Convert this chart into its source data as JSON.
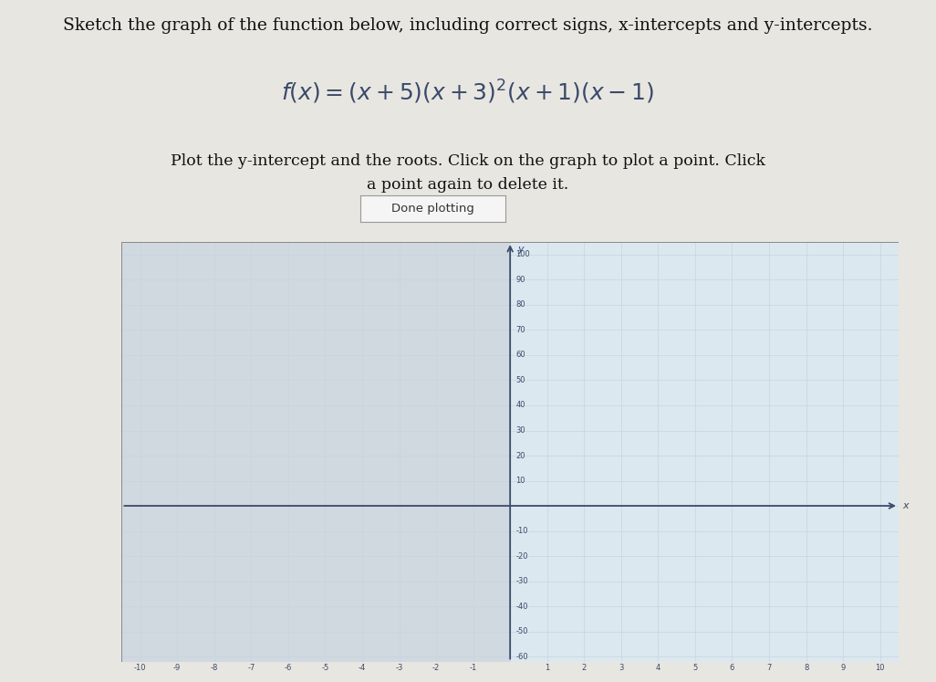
{
  "title_line1": "Sketch the graph of the function below, including correct signs, x-intercepts and y-intercepts.",
  "formula_latex": "f(x) = (x+5)(x+3)^2(x+1)(x-1)",
  "instruction_line1": "Plot the y-intercept and the roots. Click on the graph to plot a point. Click",
  "instruction_line2": "a point again to delete it.",
  "button_text": "Done plotting",
  "xlim": [
    -10,
    10
  ],
  "ylim": [
    -60,
    100
  ],
  "bg_color": "#e8e6e0",
  "graph_bg_right": "#dce8f0",
  "graph_bg_left": "#d0d8e0",
  "grid_color": "#c8d4dc",
  "axis_color": "#3a4a6b",
  "text_color": "#111111",
  "formula_color": "#3a4a6b",
  "title_fontsize": 13.5,
  "formula_fontsize": 18,
  "instruction_fontsize": 12.5
}
